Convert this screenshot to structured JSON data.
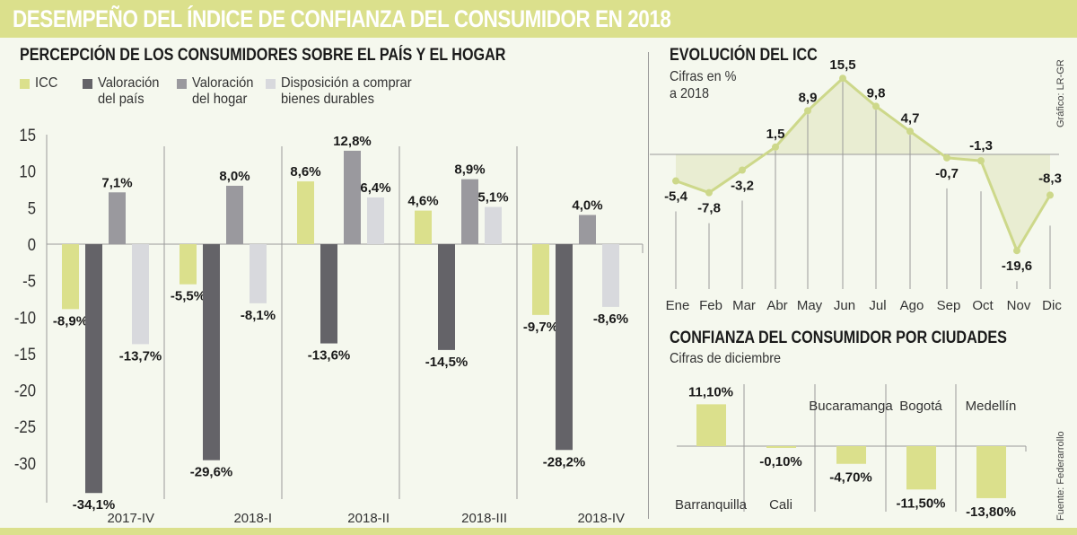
{
  "header": {
    "title": "DESEMPEÑO DEL ÍNDICE DE CONFIANZA DEL CONSUMIDOR EN 2018"
  },
  "credits": {
    "graphic": "Gráfico: LR-GR",
    "source": "Fuente: Federarrollo"
  },
  "colors": {
    "banner": "#dbe08c",
    "icc": "#dbe08c",
    "pais": "#646368",
    "hogar": "#9a999e",
    "durables": "#d8d9dd",
    "line": "#cdd88a",
    "area": "#e6ebcd",
    "background": "#f5f8ee"
  },
  "chart_data": [
    {
      "type": "bar",
      "title": "PERCEPCIÓN DE LOS CONSUMIDORES SOBRE EL PAÍS Y EL HOGAR",
      "legend": [
        "ICC",
        "Valoración\ndel país",
        "Valoración\ndel hogar",
        "Disposición a comprar\nbienes durables"
      ],
      "legend_position": "top-left",
      "categories": [
        "2017-IV",
        "2018-I",
        "2018-II",
        "2018-III",
        "2018-IV"
      ],
      "series": [
        {
          "name": "ICC",
          "values": [
            -8.9,
            -5.5,
            8.6,
            4.6,
            -9.7
          ],
          "labels": [
            "-8,9%",
            "-5,5%",
            "8,6%",
            "4,6%",
            "-9,7%"
          ]
        },
        {
          "name": "Valoración del país",
          "values": [
            -34.1,
            -29.6,
            -13.6,
            -14.5,
            -28.2
          ],
          "labels": [
            "-34,1%",
            "-29,6%",
            "-13,6%",
            "-14,5%",
            "-28,2%"
          ]
        },
        {
          "name": "Valoración del hogar",
          "values": [
            7.1,
            8.0,
            12.8,
            8.9,
            4.0
          ],
          "labels": [
            "7,1%",
            "8,0%",
            "12,8%",
            "8,9%",
            "4,0%"
          ]
        },
        {
          "name": "Disposición a comprar bienes durables",
          "values": [
            -13.7,
            -8.1,
            6.4,
            5.1,
            -8.6
          ],
          "labels": [
            "-13,7%",
            "-8,1%",
            "6,4%",
            "5,1%",
            "-8,6%"
          ]
        }
      ],
      "yticks": [
        15,
        10,
        5,
        0,
        -5,
        -10,
        -15,
        -20,
        -25,
        -30
      ],
      "ylim": [
        -35,
        15
      ],
      "xlabel": "",
      "ylabel": "",
      "grid": false
    },
    {
      "type": "line",
      "title": "EVOLUCIÓN DEL ICC",
      "subtitle": "Cifras en %\na 2018",
      "x": [
        "Ene",
        "Feb",
        "Mar",
        "Abr",
        "May",
        "Jun",
        "Jul",
        "Ago",
        "Sep",
        "Oct",
        "Nov",
        "Dic"
      ],
      "values": [
        -5.4,
        -7.8,
        -3.2,
        1.5,
        8.9,
        15.5,
        9.8,
        4.7,
        -0.7,
        -1.3,
        -19.6,
        -8.3
      ],
      "labels": [
        "-5,4",
        "-7,8",
        "-3,2",
        "1,5",
        "8,9",
        "15,5",
        "9,8",
        "4,7",
        "-0,7",
        "-1,3",
        "-19,6",
        "-8,3"
      ],
      "ylim": [
        -21,
        17
      ],
      "area_fill": true,
      "xlabel": "",
      "ylabel": "",
      "grid": false
    },
    {
      "type": "bar",
      "title": "CONFIANZA DEL CONSUMIDOR POR CIUDADES",
      "subtitle": "Cifras de diciembre",
      "categories": [
        "Barranquilla",
        "Cali",
        "Bucaramanga",
        "Bogotá",
        "Medellín"
      ],
      "values": [
        11.1,
        -0.1,
        -4.7,
        -11.5,
        -13.8
      ],
      "labels": [
        "11,10%",
        "-0,10%",
        "-4,70%",
        "-11,50%",
        "-13,80%"
      ],
      "ylim": [
        -15,
        12
      ],
      "xlabel": "",
      "ylabel": "",
      "grid": false
    }
  ]
}
